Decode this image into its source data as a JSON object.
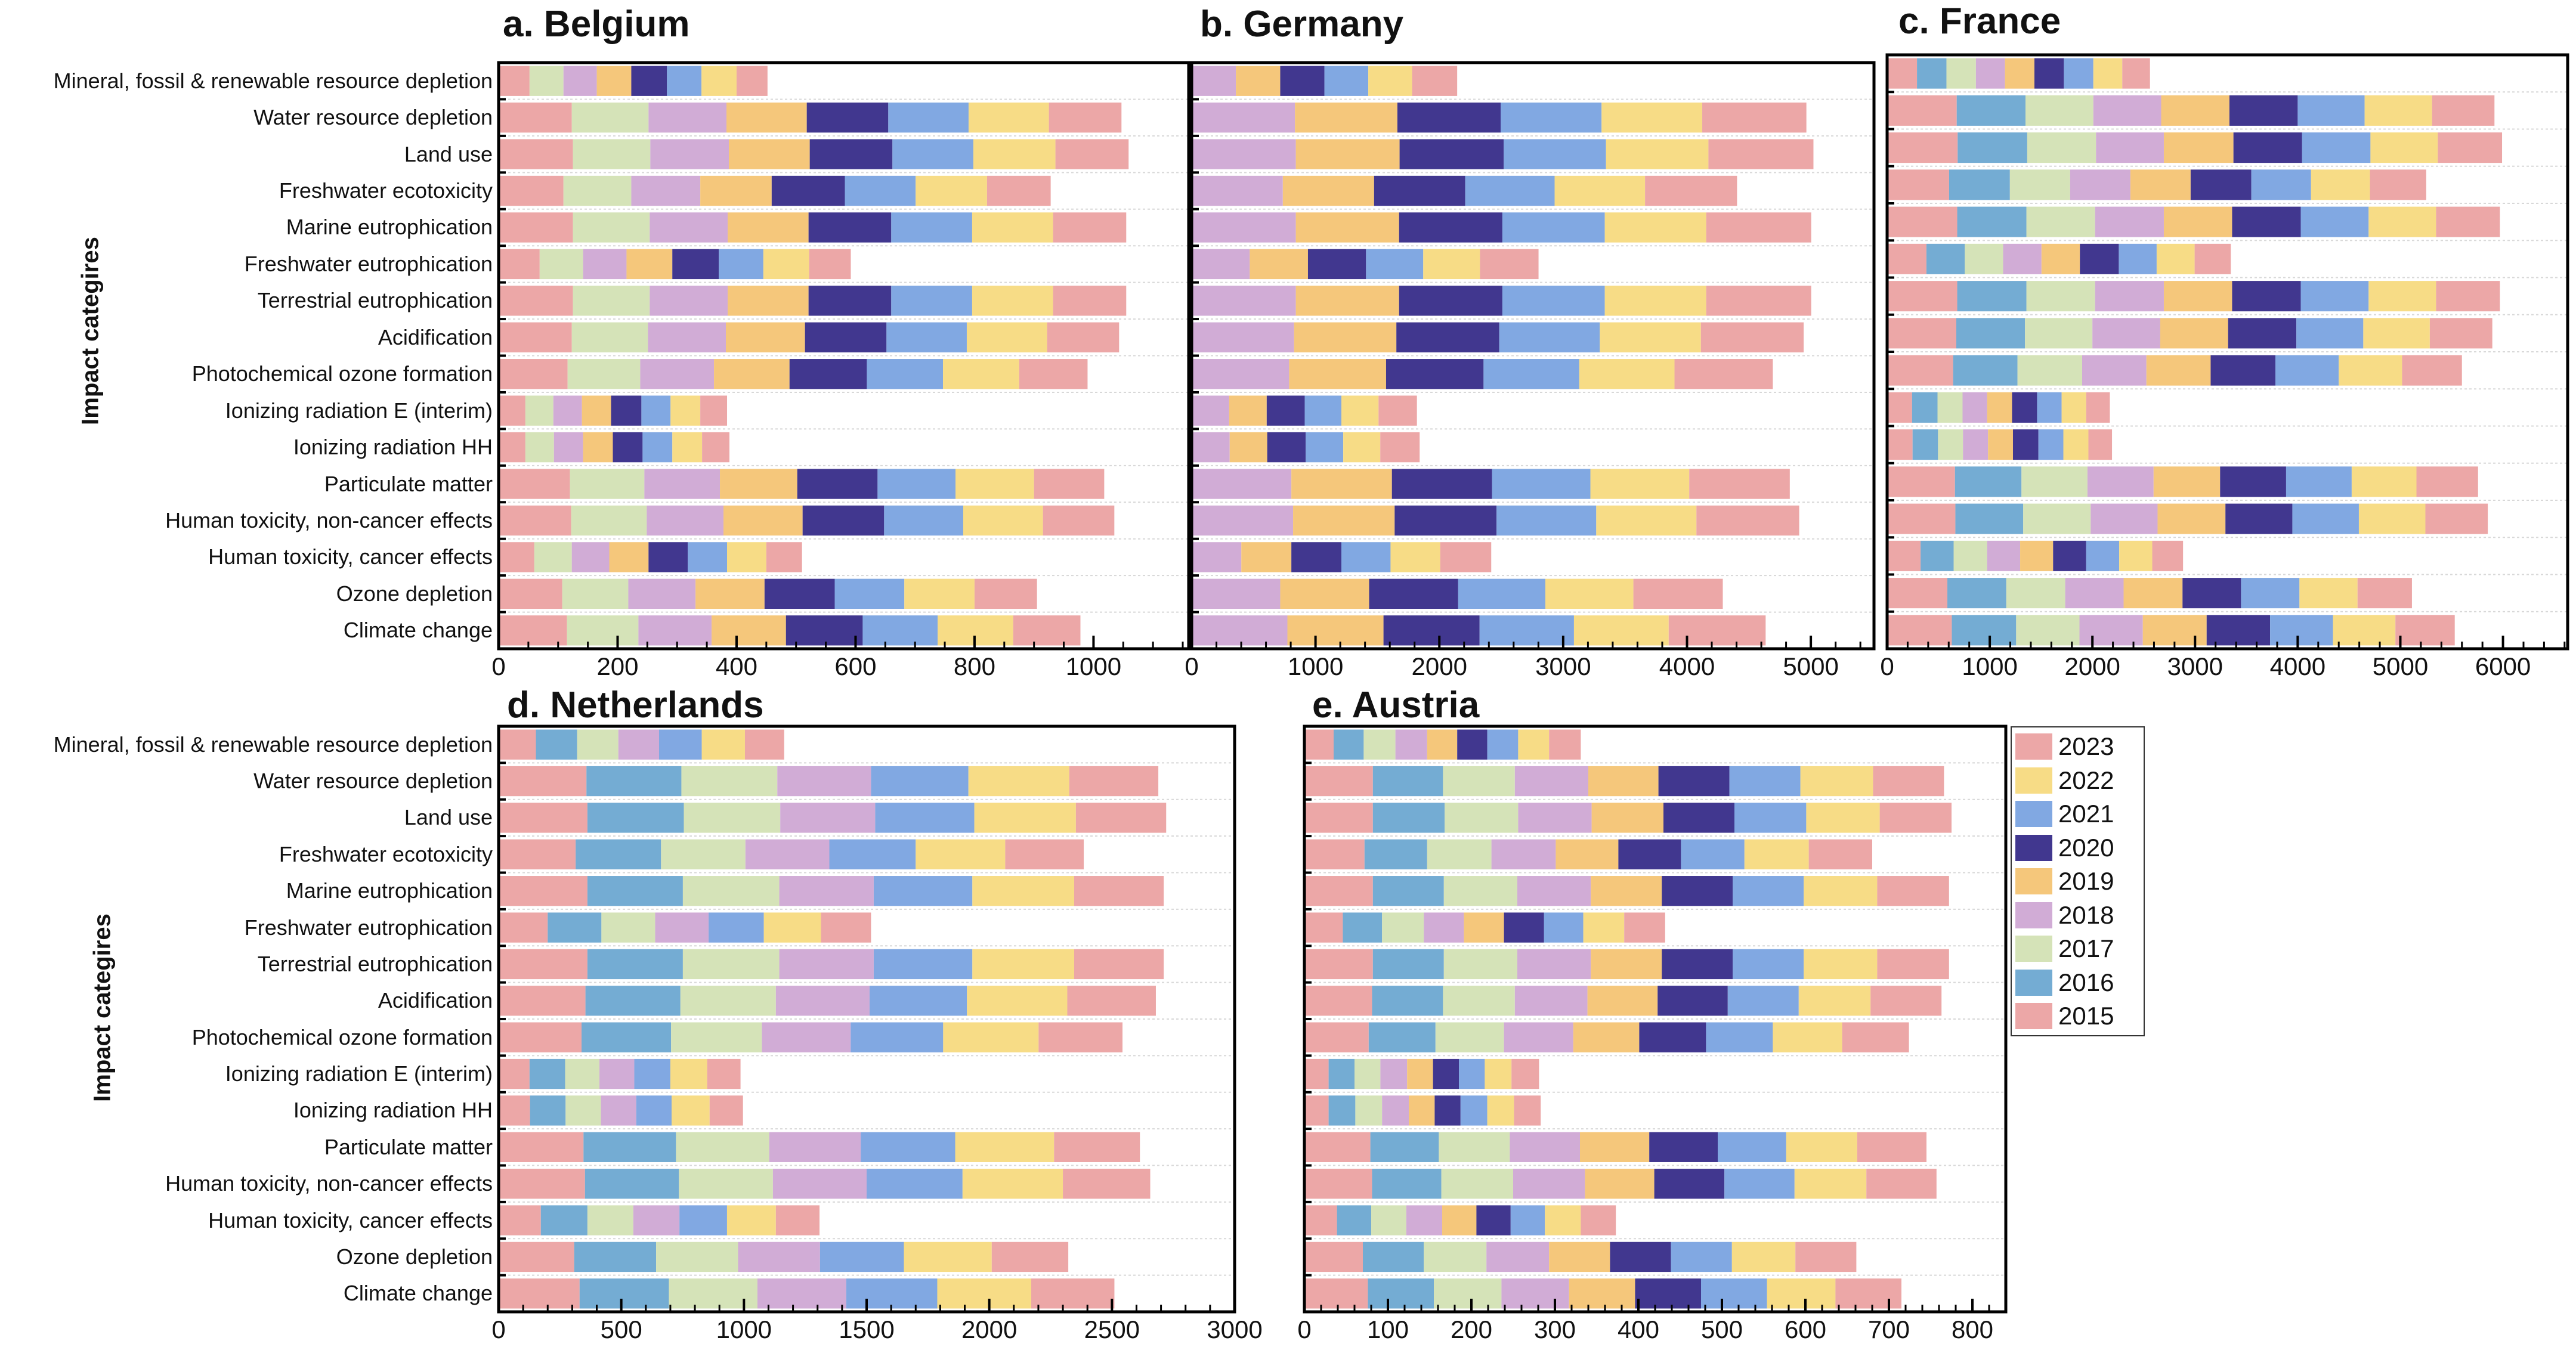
{
  "legend": {
    "entries": [
      {
        "label": "2023",
        "color": "#eca7a7"
      },
      {
        "label": "2022",
        "color": "#f7dc86"
      },
      {
        "label": "2021",
        "color": "#81a8e2"
      },
      {
        "label": "2020",
        "color": "#41378f"
      },
      {
        "label": "2019",
        "color": "#f5c77b"
      },
      {
        "label": "2018",
        "color": "#d1acd6"
      },
      {
        "label": "2017",
        "color": "#d5e3b8"
      },
      {
        "label": "2016",
        "color": "#74acd3"
      },
      {
        "label": "2015",
        "color": "#eca7a7"
      }
    ]
  },
  "chart_data": [
    {
      "type": "bar",
      "orientation": "horizontal",
      "stacked": true,
      "title": "a. Belgium",
      "ylabel": "Impact categires",
      "xlabel": "",
      "xlim": [
        0,
        1160
      ],
      "xticks": [
        0,
        200,
        400,
        600,
        800,
        1000
      ],
      "grid": true,
      "legend": "right",
      "categories": [
        "Mineral, fossil & renewable resource depletion",
        "Water resource depletion",
        "Land use",
        "Freshwater ecotoxicity",
        "Marine eutrophication",
        "Freshwater eutrophication",
        "Terrestrial eutrophication",
        "Acidification",
        "Photochemical ozone formation",
        "Ionizing radiation E (interim)",
        "Ionizing radiation HH",
        "Particulate matter",
        "Human toxicity, non-cancer effects",
        "Human toxicity, cancer effects",
        "Ozone depletion",
        "Climate change"
      ],
      "series": [
        {
          "name": "2015",
          "values": [
            52,
            123,
            125,
            109,
            125,
            69,
            125,
            123,
            116,
            45,
            45,
            120,
            122,
            60,
            107,
            115
          ]
        },
        {
          "name": "2016",
          "values": [
            0,
            0,
            0,
            0,
            0,
            0,
            0,
            0,
            0,
            0,
            0,
            0,
            0,
            0,
            0,
            0
          ]
        },
        {
          "name": "2017",
          "values": [
            57,
            129,
            130,
            114,
            129,
            73,
            129,
            128,
            122,
            47,
            48,
            125,
            127,
            63,
            111,
            120
          ]
        },
        {
          "name": "2018",
          "values": [
            56,
            131,
            132,
            116,
            131,
            73,
            131,
            131,
            124,
            48,
            49,
            127,
            129,
            63,
            113,
            123
          ]
        },
        {
          "name": "2019",
          "values": [
            58,
            135,
            136,
            120,
            136,
            77,
            136,
            133,
            127,
            49,
            50,
            130,
            133,
            66,
            116,
            125
          ]
        },
        {
          "name": "2020",
          "values": [
            60,
            137,
            139,
            123,
            139,
            78,
            139,
            137,
            130,
            51,
            50,
            135,
            137,
            66,
            118,
            129
          ]
        },
        {
          "name": "2021",
          "values": [
            58,
            135,
            136,
            119,
            136,
            75,
            136,
            135,
            128,
            49,
            50,
            131,
            133,
            66,
            117,
            126
          ]
        },
        {
          "name": "2022",
          "values": [
            59,
            135,
            138,
            120,
            136,
            77,
            136,
            135,
            128,
            50,
            50,
            132,
            134,
            66,
            118,
            127
          ]
        },
        {
          "name": "2023",
          "values": [
            52,
            122,
            123,
            107,
            123,
            70,
            123,
            121,
            115,
            45,
            46,
            118,
            120,
            60,
            105,
            113
          ]
        }
      ]
    },
    {
      "type": "bar",
      "orientation": "horizontal",
      "stacked": true,
      "title": "b. Germany",
      "xlim": [
        0,
        5510
      ],
      "xticks": [
        0,
        1000,
        2000,
        3000,
        4000,
        5000
      ],
      "grid": true,
      "series": [
        {
          "name": "2018",
          "values": [
            357,
            834,
            841,
            736,
            841,
            469,
            841,
            827,
            787,
            303,
            307,
            805,
            819,
            401,
            715,
            773
          ]
        },
        {
          "name": "2019",
          "values": [
            358,
            827,
            838,
            737,
            834,
            470,
            834,
            826,
            783,
            303,
            303,
            812,
            820,
            404,
            718,
            776
          ]
        },
        {
          "name": "2020",
          "values": [
            357,
            834,
            841,
            736,
            834,
            469,
            834,
            831,
            787,
            307,
            311,
            809,
            823,
            404,
            719,
            776
          ]
        },
        {
          "name": "2021",
          "values": [
            354,
            815,
            826,
            722,
            827,
            462,
            827,
            812,
            773,
            296,
            303,
            794,
            805,
            397,
            704,
            762
          ]
        },
        {
          "name": "2022",
          "values": [
            354,
            813,
            827,
            730,
            819,
            458,
            819,
            816,
            769,
            300,
            299,
            798,
            809,
            401,
            711,
            765
          ]
        },
        {
          "name": "2023",
          "values": [
            364,
            841,
            848,
            743,
            848,
            473,
            848,
            830,
            794,
            310,
            318,
            812,
            830,
            412,
            722,
            783
          ]
        }
      ]
    },
    {
      "type": "bar",
      "orientation": "horizontal",
      "stacked": true,
      "title": "c. France",
      "xlim": [
        0,
        6630
      ],
      "xticks": [
        0,
        1000,
        2000,
        3000,
        4000,
        5000,
        6000
      ],
      "grid": true,
      "series": [
        {
          "name": "2015",
          "values": [
            291,
            678,
            687,
            604,
            683,
            383,
            683,
            674,
            643,
            243,
            248,
            661,
            665,
            326,
            587,
            630
          ]
        },
        {
          "name": "2016",
          "values": [
            287,
            670,
            678,
            592,
            674,
            374,
            674,
            669,
            627,
            248,
            248,
            648,
            661,
            322,
            574,
            627
          ]
        },
        {
          "name": "2017",
          "values": [
            287,
            661,
            670,
            587,
            669,
            373,
            669,
            657,
            630,
            244,
            243,
            643,
            657,
            326,
            574,
            617
          ]
        },
        {
          "name": "2018",
          "values": [
            283,
            661,
            661,
            587,
            670,
            374,
            670,
            661,
            626,
            239,
            244,
            644,
            652,
            322,
            569,
            617
          ]
        },
        {
          "name": "2019",
          "values": [
            287,
            665,
            678,
            587,
            665,
            374,
            665,
            661,
            626,
            243,
            243,
            648,
            661,
            321,
            574,
            622
          ]
        },
        {
          "name": "2020",
          "values": [
            287,
            665,
            669,
            591,
            669,
            379,
            669,
            665,
            631,
            244,
            248,
            643,
            652,
            322,
            570,
            618
          ]
        },
        {
          "name": "2021",
          "values": [
            287,
            652,
            666,
            582,
            661,
            369,
            661,
            652,
            617,
            239,
            243,
            639,
            648,
            322,
            569,
            613
          ]
        },
        {
          "name": "2022",
          "values": [
            282,
            657,
            656,
            574,
            657,
            370,
            657,
            648,
            617,
            239,
            244,
            631,
            648,
            322,
            566,
            608
          ]
        },
        {
          "name": "2023",
          "values": [
            270,
            608,
            626,
            548,
            622,
            352,
            622,
            609,
            583,
            231,
            230,
            600,
            608,
            300,
            530,
            578
          ]
        }
      ]
    },
    {
      "type": "bar",
      "orientation": "horizontal",
      "stacked": true,
      "title": "d. Netherlands",
      "ylabel": "Impact categires",
      "xlim": [
        0,
        3000
      ],
      "xticks": [
        0,
        500,
        1000,
        1500,
        2000,
        2500,
        3000
      ],
      "grid": true,
      "categories": [
        "Mineral, fossil & renewable resource depletion",
        "Water resource depletion",
        "Land use",
        "Freshwater ecotoxicity",
        "Marine eutrophication",
        "Freshwater eutrophication",
        "Terrestrial eutrophication",
        "Acidification",
        "Photochemical ozone formation",
        "Ionizing radiation E (interim)",
        "Ionizing radiation HH",
        "Particulate matter",
        "Human toxicity, non-cancer effects",
        "Human toxicity, cancer effects",
        "Ozone depletion",
        "Climate change"
      ],
      "series": [
        {
          "name": "2015",
          "values": [
            152,
            358,
            362,
            314,
            362,
            200,
            362,
            354,
            338,
            126,
            128,
            346,
            352,
            172,
            308,
            330
          ]
        },
        {
          "name": "2016",
          "values": [
            168,
            387,
            393,
            348,
            389,
            219,
            389,
            387,
            365,
            145,
            145,
            377,
            383,
            190,
            334,
            364
          ]
        },
        {
          "name": "2017",
          "values": [
            168,
            391,
            393,
            344,
            393,
            219,
            393,
            389,
            370,
            140,
            144,
            380,
            383,
            187,
            334,
            361
          ]
        },
        {
          "name": "2018",
          "values": [
            166,
            382,
            387,
            342,
            385,
            218,
            385,
            382,
            362,
            142,
            144,
            373,
            382,
            188,
            334,
            362
          ]
        },
        {
          "name": "2019",
          "values": [
            0,
            0,
            0,
            0,
            0,
            0,
            0,
            0,
            0,
            0,
            0,
            0,
            0,
            0,
            0,
            0
          ]
        },
        {
          "name": "2020",
          "values": [
            0,
            0,
            0,
            0,
            0,
            0,
            0,
            0,
            0,
            0,
            0,
            0,
            0,
            0,
            0,
            0
          ]
        },
        {
          "name": "2021",
          "values": [
            174,
            397,
            404,
            352,
            402,
            225,
            402,
            397,
            377,
            147,
            144,
            385,
            391,
            194,
            342,
            371
          ]
        },
        {
          "name": "2022",
          "values": [
            176,
            411,
            414,
            365,
            415,
            233,
            415,
            409,
            389,
            150,
            155,
            403,
            409,
            199,
            358,
            383
          ]
        },
        {
          "name": "2023",
          "values": [
            160,
            363,
            368,
            320,
            365,
            204,
            365,
            361,
            342,
            136,
            136,
            350,
            356,
            178,
            312,
            339
          ]
        }
      ]
    },
    {
      "type": "bar",
      "orientation": "horizontal",
      "stacked": true,
      "title": "e. Austria",
      "xlim": [
        0,
        840
      ],
      "xticks": [
        0,
        100,
        200,
        300,
        400,
        500,
        600,
        700,
        800
      ],
      "grid": true,
      "series": [
        {
          "name": "2015",
          "values": [
            35,
            82,
            82,
            72,
            82,
            46,
            82,
            81,
            77,
            29,
            29,
            79,
            81,
            39,
            70,
            76
          ]
        },
        {
          "name": "2016",
          "values": [
            36,
            84,
            86,
            75,
            85,
            47,
            85,
            85,
            80,
            31,
            32,
            82,
            83,
            41,
            73,
            79
          ]
        },
        {
          "name": "2017",
          "values": [
            38,
            86,
            88,
            77,
            88,
            50,
            88,
            86,
            82,
            31,
            32,
            85,
            86,
            42,
            75,
            81
          ]
        },
        {
          "name": "2018",
          "values": [
            38,
            88,
            88,
            77,
            88,
            48,
            88,
            87,
            83,
            32,
            32,
            84,
            86,
            43,
            75,
            81
          ]
        },
        {
          "name": "2019",
          "values": [
            36,
            84,
            86,
            75,
            85,
            48,
            85,
            84,
            79,
            31,
            31,
            83,
            83,
            41,
            73,
            79
          ]
        },
        {
          "name": "2020",
          "values": [
            36,
            85,
            85,
            75,
            85,
            48,
            85,
            84,
            80,
            31,
            31,
            82,
            84,
            41,
            73,
            79
          ]
        },
        {
          "name": "2021",
          "values": [
            37,
            85,
            86,
            76,
            85,
            47,
            85,
            85,
            80,
            31,
            32,
            82,
            84,
            41,
            73,
            79
          ]
        },
        {
          "name": "2022",
          "values": [
            37,
            87,
            88,
            77,
            88,
            49,
            88,
            86,
            83,
            32,
            32,
            85,
            86,
            43,
            76,
            82
          ]
        },
        {
          "name": "2023",
          "values": [
            38,
            85,
            86,
            76,
            86,
            49,
            86,
            85,
            80,
            33,
            32,
            83,
            84,
            42,
            73,
            79
          ]
        }
      ]
    }
  ]
}
